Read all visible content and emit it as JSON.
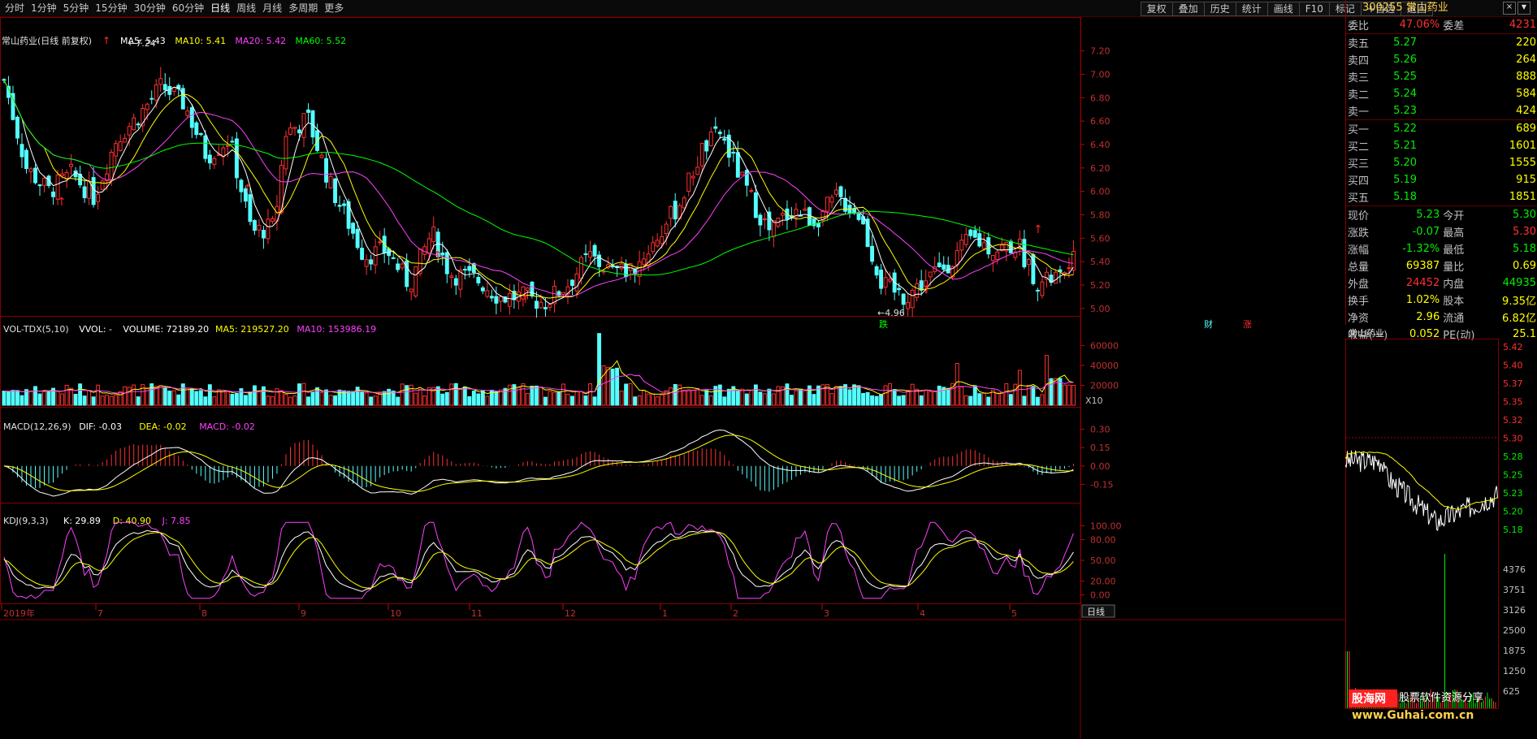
{
  "toolbar": {
    "periods": [
      "分时",
      "1分钟",
      "5分钟",
      "15分钟",
      "30分钟",
      "60分钟",
      "日线",
      "周线",
      "月线",
      "多周期",
      "更多"
    ],
    "tools": [
      "复权",
      "叠加",
      "历史",
      "统计",
      "画线",
      "F10",
      "标记",
      "+自选",
      "返回"
    ]
  },
  "header": {
    "price_title": "常山药业(日线 前复权)",
    "ma": [
      {
        "label": "MA5: 5.43",
        "color": "#ffffff"
      },
      {
        "label": "MA10: 5.41",
        "color": "#ffff00"
      },
      {
        "label": "MA20: 5.42",
        "color": "#ff40ff"
      },
      {
        "label": "MA60: 5.52",
        "color": "#00ff00"
      }
    ],
    "vol_title": "VOL-TDX(5,10)",
    "vol_vals": [
      {
        "label": "VVOL: -",
        "color": "#ffffff"
      },
      {
        "label": "VOLUME: 72189.20",
        "color": "#ffffff"
      },
      {
        "label": "MA5: 219527.20",
        "color": "#ffff00"
      },
      {
        "label": "MA10: 153986.19",
        "color": "#ff40ff"
      }
    ],
    "macd_title": "MACD(12,26,9)",
    "macd_vals": [
      {
        "label": "DIF: -0.03",
        "color": "#ffffff"
      },
      {
        "label": "DEA: -0.02",
        "color": "#ffff00"
      },
      {
        "label": "MACD: -0.02",
        "color": "#ff40ff"
      }
    ],
    "kdj_title": "KDJ(9,3,3)",
    "kdj_vals": [
      {
        "label": "K: 29.89",
        "color": "#ffffff"
      },
      {
        "label": "D: 40.90",
        "color": "#ffff00"
      },
      {
        "label": "J: 7.85",
        "color": "#ff40ff"
      }
    ]
  },
  "axes": {
    "price_ticks": [
      "7.20",
      "7.00",
      "6.80",
      "6.60",
      "6.40",
      "6.20",
      "6.00",
      "5.80",
      "5.60",
      "5.40",
      "5.20",
      "5.00"
    ],
    "vol_ticks": [
      "60000",
      "40000",
      "20000"
    ],
    "vol_unit": "X10",
    "macd_ticks": [
      "0.30",
      "0.15",
      "0.00",
      "-0.15"
    ],
    "kdj_ticks": [
      "100.00",
      "80.00",
      "50.00",
      "20.00",
      "0.00"
    ],
    "x_labels": [
      "2019年",
      "7",
      "8",
      "9",
      "10",
      "11",
      "12",
      "1",
      "2",
      "3",
      "4",
      "5"
    ],
    "bottom_tab": "日线"
  },
  "annotations": {
    "high": "7.24",
    "low": "4.96",
    "die": "跌",
    "cai": "财",
    "zhang": "涨"
  },
  "quote": {
    "code": "300255",
    "name": "常山药业",
    "weibi_label": "委比",
    "weibi": "47.06%",
    "weicha_label": "委差",
    "weicha": "4231",
    "asks": [
      {
        "label": "卖五",
        "price": "5.27",
        "vol": "220"
      },
      {
        "label": "卖四",
        "price": "5.26",
        "vol": "264"
      },
      {
        "label": "卖三",
        "price": "5.25",
        "vol": "888"
      },
      {
        "label": "卖二",
        "price": "5.24",
        "vol": "584"
      },
      {
        "label": "卖一",
        "price": "5.23",
        "vol": "424"
      }
    ],
    "bids": [
      {
        "label": "买一",
        "price": "5.22",
        "vol": "689"
      },
      {
        "label": "买二",
        "price": "5.21",
        "vol": "1601"
      },
      {
        "label": "买三",
        "price": "5.20",
        "vol": "1555"
      },
      {
        "label": "买四",
        "price": "5.19",
        "vol": "915"
      },
      {
        "label": "买五",
        "price": "5.18",
        "vol": "1851"
      }
    ],
    "stats": [
      {
        "l1": "现价",
        "v1": "5.23",
        "l2": "今开",
        "v2": "5.30"
      },
      {
        "l1": "涨跌",
        "v1": "-0.07",
        "l2": "最高",
        "v2": "5.30"
      },
      {
        "l1": "涨幅",
        "v1": "-1.32%",
        "l2": "最低",
        "v2": "5.18"
      },
      {
        "l1": "总量",
        "v1": "69387",
        "l2": "量比",
        "v2": "0.69"
      },
      {
        "l1": "外盘",
        "v1": "24452",
        "l2": "内盘",
        "v2": "44935"
      },
      {
        "l1": "换手",
        "v1": "1.02%",
        "l2": "股本",
        "v2": "9.35亿"
      },
      {
        "l1": "净资",
        "v1": "2.96",
        "l2": "流通",
        "v2": "6.82亿"
      },
      {
        "l1": "收益(一)",
        "v1": "0.052",
        "l2": "PE(动)",
        "v2": "25.1"
      }
    ]
  },
  "intraday": {
    "title": "常山药业",
    "price_ticks": [
      "5.42",
      "5.40",
      "5.37",
      "5.35",
      "5.32",
      "5.30",
      "5.28",
      "5.25",
      "5.23",
      "5.20",
      "5.18"
    ],
    "vol_ticks": [
      "4376",
      "3751",
      "3126",
      "2500",
      "1875",
      "1250",
      "625"
    ]
  },
  "watermark": {
    "brand": "股海网",
    "slogan": "股票软件资源分享",
    "url": "www.Guhai.com.cn"
  },
  "colors": {
    "up": "#ff3030",
    "down": "#54ffff",
    "ma5": "#ffffff",
    "ma10": "#ffff00",
    "ma20": "#ff40ff",
    "ma60": "#00ff00",
    "grid": "#800000"
  },
  "chart_data": {
    "type": "candlestick",
    "bars": 240,
    "close_anchors": [
      [
        0,
        6.95
      ],
      [
        10,
        6.2
      ],
      [
        20,
        6.0
      ],
      [
        30,
        6.15
      ],
      [
        40,
        5.95
      ],
      [
        50,
        6.45
      ],
      [
        60,
        6.65
      ],
      [
        70,
        6.9
      ],
      [
        80,
        6.75
      ],
      [
        90,
        6.3
      ],
      [
        100,
        6.45
      ],
      [
        110,
        5.65
      ],
      [
        120,
        5.7
      ],
      [
        125,
        6.5
      ],
      [
        135,
        6.62
      ],
      [
        145,
        6.05
      ],
      [
        150,
        5.85
      ],
      [
        160,
        5.45
      ],
      [
        170,
        5.5
      ],
      [
        180,
        5.2
      ],
      [
        190,
        5.65
      ],
      [
        198,
        5.3
      ],
      [
        210,
        5.25
      ],
      [
        220,
        5.1
      ],
      [
        230,
        5.1
      ],
      [
        240,
        5.05
      ],
      [
        250,
        5.2
      ],
      [
        260,
        5.45
      ],
      [
        270,
        5.3
      ],
      [
        280,
        5.35
      ],
      [
        290,
        5.6
      ],
      [
        300,
        5.9
      ],
      [
        310,
        6.35
      ],
      [
        318,
        6.5
      ],
      [
        330,
        6.0
      ],
      [
        340,
        5.65
      ],
      [
        350,
        5.85
      ],
      [
        360,
        5.75
      ],
      [
        370,
        5.95
      ],
      [
        380,
        5.8
      ],
      [
        390,
        5.2
      ],
      [
        400,
        5.1
      ],
      [
        410,
        5.25
      ],
      [
        420,
        5.4
      ],
      [
        430,
        5.6
      ],
      [
        440,
        5.5
      ],
      [
        450,
        5.55
      ],
      [
        460,
        5.2
      ],
      [
        470,
        5.3
      ],
      [
        475,
        5.4
      ]
    ],
    "price_range": [
      4.95,
      7.35
    ],
    "high_label": 7.24,
    "low_label": 4.96,
    "volume_max_x10": 75000,
    "macd_range": [
      -0.3,
      0.35
    ],
    "kdj_range": [
      -10,
      110
    ]
  }
}
